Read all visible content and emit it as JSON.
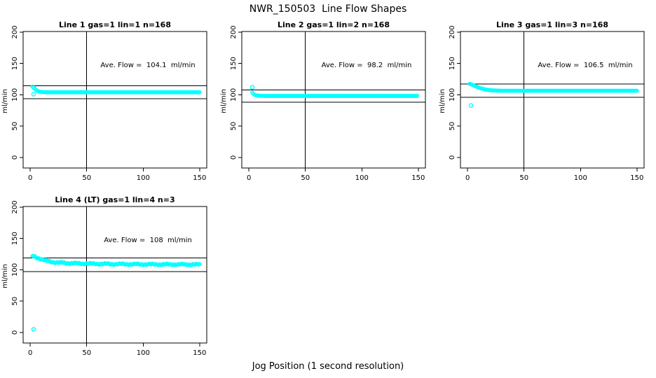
{
  "page": {
    "title": "NWR_150503  Line Flow Shapes",
    "xlabel": "Jog Position (1 second resolution)"
  },
  "colors": {
    "background": "#FFFFFF",
    "axis": "#000000",
    "text": "#000000",
    "points": "#00FFFF"
  },
  "chart_data": [
    {
      "type": "scatter",
      "title": "Line 1 gas=1 lin=1 n=168",
      "annotation": "Ave. Flow =  104.1  ml/min",
      "ave_flow_ml_min": 104.1,
      "n": 168,
      "ylabel": "ml/min",
      "xticks": [
        0,
        50,
        100,
        150
      ],
      "yticks": [
        0,
        50,
        100,
        150,
        200
      ],
      "xlim": [
        -6.3,
        156.3
      ],
      "ylim": [
        -16.8,
        201.1
      ],
      "vline_x": 50,
      "ref_lines": [
        114.5,
        93.7
      ],
      "keypoints": [
        [
          2,
          113
        ],
        [
          3,
          111.5
        ],
        [
          4,
          110
        ],
        [
          5,
          108
        ],
        [
          6,
          106.5
        ],
        [
          8,
          105.2
        ],
        [
          10,
          104.6
        ],
        [
          13,
          104.2
        ],
        [
          16,
          104.1
        ]
      ],
      "flat_to_x": 150,
      "outliers": [
        [
          3,
          101
        ]
      ],
      "noise": 0
    },
    {
      "type": "scatter",
      "title": "Line 2 gas=1 lin=2 n=168",
      "annotation": "Ave. Flow =  98.2  ml/min",
      "ave_flow_ml_min": 98.2,
      "n": 168,
      "ylabel": "ml/min",
      "xticks": [
        0,
        50,
        100,
        150
      ],
      "yticks": [
        0,
        50,
        100,
        150,
        200
      ],
      "xlim": [
        -6.3,
        156.3
      ],
      "ylim": [
        -16.8,
        201.1
      ],
      "vline_x": 50,
      "ref_lines": [
        108.0,
        88.4
      ],
      "keypoints": [
        [
          3,
          103.5
        ],
        [
          4,
          101.5
        ],
        [
          5,
          100.2
        ],
        [
          6,
          99.4
        ],
        [
          8,
          98.8
        ],
        [
          11,
          98.4
        ],
        [
          15,
          98.2
        ]
      ],
      "flat_to_x": 149,
      "outliers": [
        [
          3,
          112
        ]
      ],
      "noise": 0
    },
    {
      "type": "scatter",
      "title": "Line 3 gas=1 lin=3 n=168",
      "annotation": "Ave. Flow =  106.5  ml/min",
      "ave_flow_ml_min": 106.5,
      "n": 168,
      "ylabel": "ml/min",
      "xticks": [
        0,
        50,
        100,
        150
      ],
      "yticks": [
        0,
        50,
        100,
        150,
        200
      ],
      "xlim": [
        -6.3,
        156.3
      ],
      "ylim": [
        -16.8,
        201.1
      ],
      "vline_x": 50,
      "ref_lines": [
        117.2,
        95.9
      ],
      "keypoints": [
        [
          2,
          117.5
        ],
        [
          3,
          117
        ],
        [
          4,
          116.2
        ],
        [
          5,
          115.3
        ],
        [
          7,
          113.8
        ],
        [
          9,
          112.3
        ],
        [
          11,
          110.8
        ],
        [
          13,
          109.7
        ],
        [
          16,
          108.4
        ],
        [
          20,
          107.4
        ],
        [
          25,
          106.9
        ],
        [
          30,
          106.5
        ]
      ],
      "flat_to_x": 150,
      "outliers": [
        [
          3,
          83
        ]
      ],
      "noise": 0
    },
    {
      "type": "scatter",
      "title": "Line 4 (LT) gas=1 lin=4 n=3",
      "annotation": "Ave. Flow =  108  ml/min",
      "ave_flow_ml_min": 108,
      "n": 3,
      "ylabel": "ml/min",
      "xticks": [
        0,
        50,
        100,
        150
      ],
      "yticks": [
        0,
        50,
        100,
        150,
        200
      ],
      "xlim": [
        -6.3,
        156.3
      ],
      "ylim": [
        -16.8,
        201.1
      ],
      "vline_x": 50,
      "ref_lines": [
        118.8,
        97.2
      ],
      "keypoints": [
        [
          2,
          122
        ],
        [
          4,
          121
        ],
        [
          6,
          119.5
        ],
        [
          9,
          117.5
        ],
        [
          12,
          115.5
        ],
        [
          15,
          114
        ],
        [
          20,
          112.5
        ],
        [
          25,
          111.5
        ],
        [
          30,
          111
        ],
        [
          40,
          110.3
        ],
        [
          55,
          109.7
        ],
        [
          75,
          109.2
        ],
        [
          110,
          108.7
        ],
        [
          150,
          108.5
        ]
      ],
      "flat_to_x": 150,
      "outliers": [
        [
          3,
          5
        ]
      ],
      "noise": 1.4
    }
  ]
}
